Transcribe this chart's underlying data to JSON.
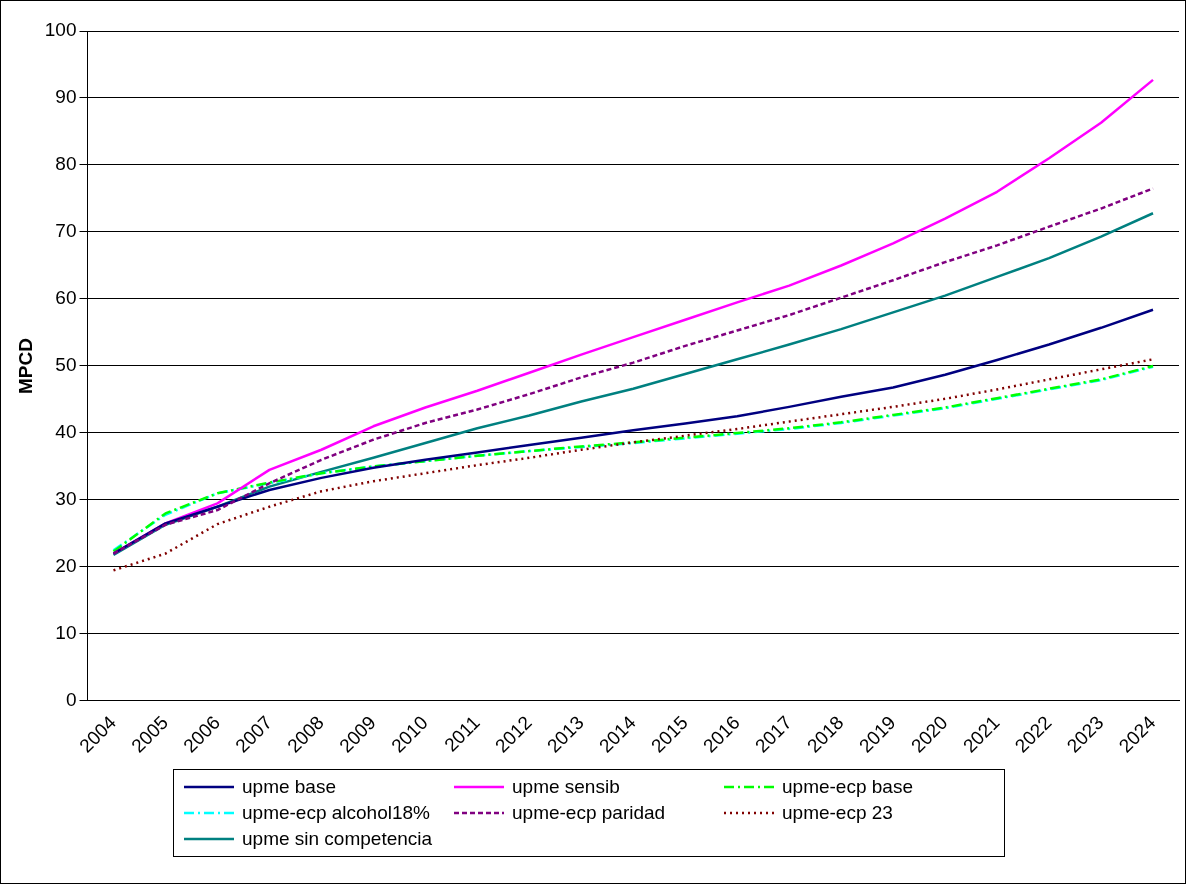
{
  "chart_data": {
    "type": "line",
    "ylabel": "MPCD",
    "categories": [
      "2004",
      "2005",
      "2006",
      "2007",
      "2008",
      "2009",
      "2010",
      "2011",
      "2012",
      "2013",
      "2014",
      "2015",
      "2016",
      "2017",
      "2018",
      "2019",
      "2020",
      "2021",
      "2022",
      "2023",
      "2024"
    ],
    "ylim": [
      0,
      100
    ],
    "yticks": [
      0,
      10,
      20,
      30,
      40,
      50,
      60,
      70,
      80,
      90,
      100
    ],
    "grid": "y",
    "legend": "bottom",
    "marker": "none",
    "series": [
      {
        "name": "upme base",
        "color": "#000080",
        "line_style": "solid",
        "values": [
          22,
          26.5,
          29,
          31.5,
          33.3,
          34.8,
          36,
          37.1,
          38.2,
          39.3,
          40.4,
          41.4,
          42.5,
          43.9,
          45.4,
          46.8,
          48.7,
          50.9,
          53.2,
          55.7,
          58.4
        ]
      },
      {
        "name": "upme sensib",
        "color": "#ff00ff",
        "line_style": "solid",
        "values": [
          22,
          26.5,
          29.5,
          34.5,
          37.5,
          41,
          43.8,
          46.3,
          49,
          51.7,
          54.3,
          56.9,
          59.5,
          62,
          65,
          68.3,
          72,
          76,
          81,
          86.3,
          92.7
        ]
      },
      {
        "name": "upme-ecp base",
        "color": "#00ff00",
        "line_style": "dashdot",
        "values": [
          22.3,
          28,
          31,
          32.6,
          34,
          35,
          35.8,
          36.6,
          37.3,
          38,
          38.6,
          39.3,
          40,
          40.7,
          41.6,
          42.7,
          43.8,
          45.2,
          46.6,
          48,
          50
        ]
      },
      {
        "name": "upme-ecp alcohol18%",
        "color": "#00ffff",
        "line_style": "dashdot",
        "values": [
          22.5,
          27.8,
          31,
          32.5,
          34,
          35,
          35.8,
          36.6,
          37.3,
          37.9,
          38.5,
          39.2,
          39.9,
          40.6,
          41.5,
          42.6,
          43.7,
          45.1,
          46.5,
          47.9,
          49.9
        ]
      },
      {
        "name": "upme-ecp paridad",
        "color": "#800080",
        "line_style": "dashed",
        "values": [
          22,
          26.3,
          28.5,
          32.5,
          36,
          39,
          41.5,
          43.5,
          45.8,
          48.3,
          50.5,
          53,
          55.3,
          57.6,
          60.2,
          62.8,
          65.5,
          68,
          70.8,
          73.5,
          76.5
        ]
      },
      {
        "name": "upme-ecp 23",
        "color": "#800000",
        "line_style": "dotted",
        "values": [
          19.5,
          22,
          26.4,
          29,
          31.3,
          32.8,
          34,
          35.2,
          36.3,
          37.5,
          38.6,
          39.6,
          40.6,
          41.7,
          42.8,
          43.9,
          45.1,
          46.5,
          48,
          49.5,
          51
        ]
      },
      {
        "name": "upme sin competencia",
        "color": "#008080",
        "line_style": "solid",
        "values": [
          21.8,
          26.3,
          29,
          32,
          34.2,
          36.3,
          38.5,
          40.7,
          42.6,
          44.7,
          46.6,
          48.8,
          51,
          53.2,
          55.5,
          58,
          60.5,
          63.3,
          66.1,
          69.3,
          72.8
        ]
      }
    ]
  }
}
